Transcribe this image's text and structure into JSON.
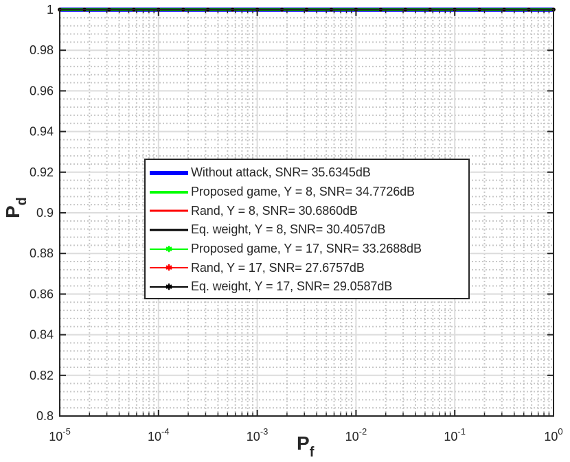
{
  "chart_data": {
    "type": "line",
    "xlabel_main": "P",
    "xlabel_sub": "f",
    "ylabel_main": "P",
    "ylabel_sub": "d",
    "xscale": "log",
    "xlim": [
      1e-05,
      1
    ],
    "ylim": [
      0.8,
      1.0
    ],
    "x_tick_exponents": [
      "-5",
      "-4",
      "-3",
      "-2",
      "-1",
      "0"
    ],
    "x_tick_base": "10",
    "y_ticks": [
      "0.8",
      "0.82",
      "0.84",
      "0.86",
      "0.88",
      "0.9",
      "0.92",
      "0.94",
      "0.96",
      "0.98",
      "1"
    ],
    "grid": true,
    "legend_position": "center",
    "x": [
      1e-05,
      1
    ],
    "series": [
      {
        "name": "Without attack, SNR= 35.6345dB",
        "values": [
          1,
          1
        ],
        "color": "#0000ff",
        "marker": "none"
      },
      {
        "name": "Proposed game, Y = 8, SNR=  34.7726dB",
        "values": [
          1,
          1
        ],
        "color": "#00ff00",
        "marker": "none"
      },
      {
        "name": "Rand, Y = 8, SNR=  30.6860dB",
        "values": [
          1,
          1
        ],
        "color": "#ff0000",
        "marker": "none"
      },
      {
        "name": "Eq. weight, Y = 8, SNR= 30.4057dB",
        "values": [
          1,
          1
        ],
        "color": "#000000",
        "marker": "none"
      },
      {
        "name": "Proposed game, Y = 17, SNR= 33.2688dB",
        "values": [
          1,
          1
        ],
        "color": "#00ff00",
        "marker": "star"
      },
      {
        "name": "Rand, Y = 17, SNR= 27.6757dB",
        "values": [
          1,
          1
        ],
        "color": "#ff0000",
        "marker": "star"
      },
      {
        "name": "Eq. weight, Y = 17, SNR=  29.0587dB",
        "values": [
          1,
          1
        ],
        "color": "#000000",
        "marker": "star"
      }
    ]
  }
}
